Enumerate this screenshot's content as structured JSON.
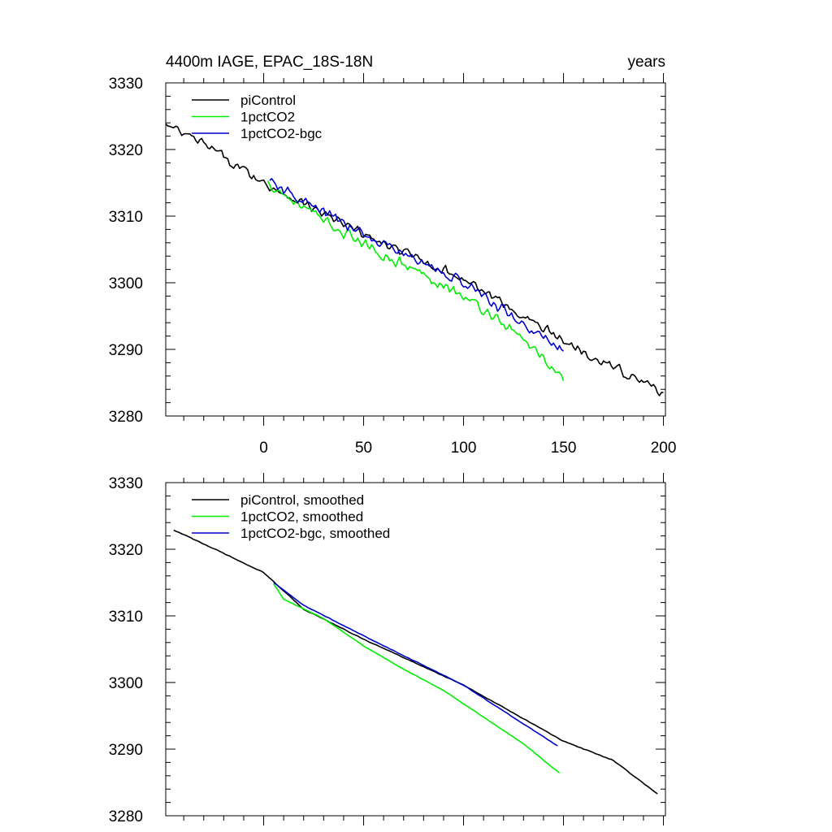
{
  "title_left": "4400m IAGE, EPAC_18S-18N",
  "title_right": "years",
  "colors": {
    "piControl": "#000000",
    "1pctCO2": "#00ee00",
    "1pctCO2-bgc": "#0000cc"
  },
  "chart_data": [
    {
      "type": "line",
      "title": "4400m IAGE, EPAC_18S-18N",
      "xlabel": "years",
      "ylabel": "",
      "xlim": [
        -49,
        201
      ],
      "ylim": [
        3280,
        3330
      ],
      "x_ticks": [
        0,
        50,
        100,
        150,
        200
      ],
      "y_ticks": [
        3280,
        3290,
        3300,
        3310,
        3320,
        3330
      ],
      "legend_position": "top-left",
      "series": [
        {
          "name": "piControl",
          "color": "#000000",
          "x_start": -49,
          "x_end": 200,
          "step": 1,
          "anchors": [
            [
              -49,
              3323.6
            ],
            [
              -30,
              3320.8
            ],
            [
              0,
              3315.0
            ],
            [
              50,
              3307.2
            ],
            [
              100,
              3300.6
            ],
            [
              150,
              3291.3
            ],
            [
              200,
              3283.5
            ]
          ],
          "noise": 0.9
        },
        {
          "name": "1pctCO2",
          "color": "#00ee00",
          "x_start": 2,
          "x_end": 150,
          "step": 1,
          "anchors": [
            [
              2,
              3315.0
            ],
            [
              30,
              3309.2
            ],
            [
              60,
              3304.2
            ],
            [
              90,
              3299.8
            ],
            [
              115,
              3295.0
            ],
            [
              135,
              3290.2
            ],
            [
              150,
              3285.5
            ]
          ],
          "noise": 1.0
        },
        {
          "name": "1pctCO2-bgc",
          "color": "#0000cc",
          "x_start": 3,
          "x_end": 150,
          "step": 1,
          "anchors": [
            [
              3,
              3315.0
            ],
            [
              50,
              3307.2
            ],
            [
              100,
              3300.0
            ],
            [
              150,
              3289.6
            ]
          ],
          "noise": 1.0
        }
      ]
    },
    {
      "type": "line",
      "title": "",
      "xlabel": "",
      "ylabel": "",
      "xlim": [
        -49,
        201
      ],
      "ylim": [
        3280,
        3330
      ],
      "x_ticks": [
        0,
        50,
        100,
        150,
        200
      ],
      "y_ticks": [
        3280,
        3290,
        3300,
        3310,
        3320,
        3330
      ],
      "legend_position": "top-left",
      "series": [
        {
          "name": "piControl, smoothed",
          "color": "#000000",
          "x_start": -45,
          "x_end": 197,
          "step": 1,
          "anchors": [
            [
              -45,
              3322.9
            ],
            [
              -30,
              3320.8
            ],
            [
              0,
              3316.5
            ],
            [
              20,
              3311.0
            ],
            [
              50,
              3306.5
            ],
            [
              100,
              3299.6
            ],
            [
              150,
              3291.2
            ],
            [
              175,
              3288.3
            ],
            [
              197,
              3283.3
            ]
          ],
          "noise": 0.06
        },
        {
          "name": "1pctCO2, smoothed",
          "color": "#00ee00",
          "x_start": 5,
          "x_end": 148,
          "step": 1,
          "anchors": [
            [
              5,
              3314.8
            ],
            [
              10,
              3312.5
            ],
            [
              30,
              3309.6
            ],
            [
              50,
              3305.5
            ],
            [
              70,
              3302.0
            ],
            [
              90,
              3298.8
            ],
            [
              110,
              3294.8
            ],
            [
              130,
              3290.8
            ],
            [
              148,
              3286.4
            ]
          ],
          "noise": 0.04
        },
        {
          "name": "1pctCO2-bgc, smoothed",
          "color": "#0000cc",
          "x_start": 5,
          "x_end": 147,
          "step": 1,
          "anchors": [
            [
              5,
              3315.0
            ],
            [
              20,
              3311.6
            ],
            [
              50,
              3307.0
            ],
            [
              100,
              3299.6
            ],
            [
              147,
              3290.5
            ]
          ],
          "noise": 0.05
        }
      ]
    }
  ]
}
